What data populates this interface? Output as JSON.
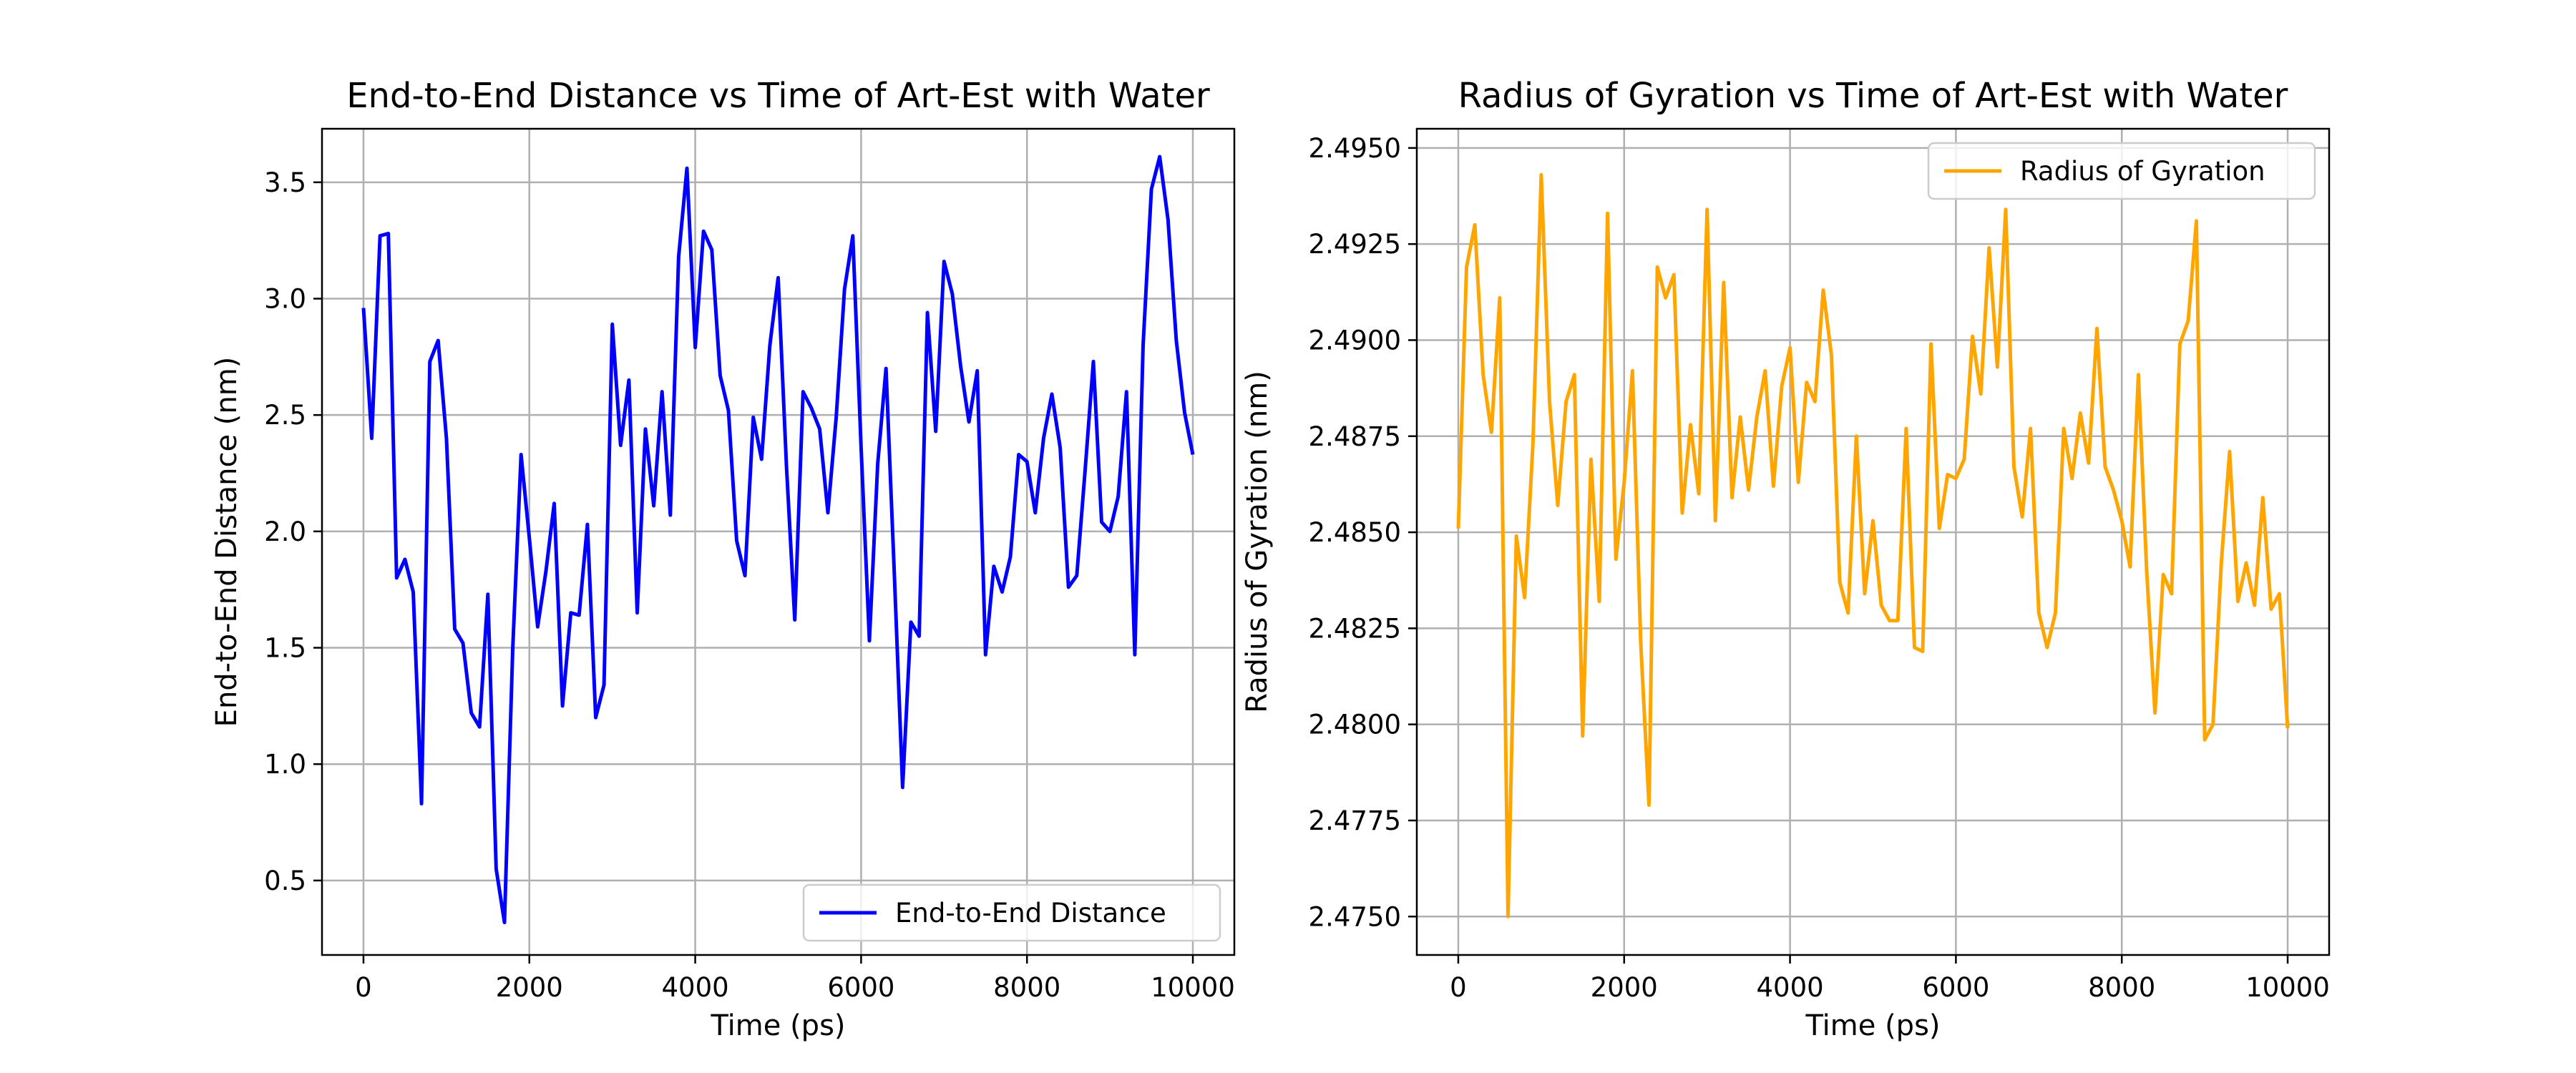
{
  "chart_data": [
    {
      "type": "line",
      "title": "End-to-End Distance vs Time of Art-Est with Water",
      "xlabel": "Time (ps)",
      "ylabel": "End-to-End Distance (nm)",
      "xlim": [
        -500,
        10500
      ],
      "ylim": [
        0.18,
        3.73
      ],
      "xticks": [
        0,
        2000,
        4000,
        6000,
        8000,
        10000
      ],
      "xtick_labels": [
        "0",
        "2000",
        "4000",
        "6000",
        "8000",
        "10000"
      ],
      "yticks": [
        0.5,
        1.0,
        1.5,
        2.0,
        2.5,
        3.0,
        3.5
      ],
      "ytick_labels": [
        "0.5",
        "1.0",
        "1.5",
        "2.0",
        "2.5",
        "3.0",
        "3.5"
      ],
      "grid": true,
      "legend_position": "lower-right",
      "series": [
        {
          "name": "End-to-End Distance",
          "color": "#0000ff",
          "x": [
            0,
            100,
            200,
            300,
            400,
            500,
            600,
            700,
            800,
            900,
            1000,
            1100,
            1200,
            1300,
            1400,
            1500,
            1600,
            1700,
            1800,
            1900,
            2000,
            2100,
            2200,
            2300,
            2400,
            2500,
            2600,
            2700,
            2800,
            2900,
            3000,
            3100,
            3200,
            3300,
            3400,
            3500,
            3600,
            3700,
            3800,
            3900,
            4000,
            4100,
            4200,
            4300,
            4400,
            4500,
            4600,
            4700,
            4800,
            4900,
            5000,
            5100,
            5200,
            5300,
            5400,
            5500,
            5600,
            5700,
            5800,
            5900,
            6000,
            6100,
            6200,
            6300,
            6400,
            6500,
            6600,
            6700,
            6800,
            6900,
            7000,
            7100,
            7200,
            7300,
            7400,
            7500,
            7600,
            7700,
            7800,
            7900,
            8000,
            8100,
            8200,
            8300,
            8400,
            8500,
            8600,
            8700,
            8800,
            8900,
            9000,
            9100,
            9200,
            9300,
            9400,
            9500,
            9600,
            9700,
            9800,
            9900,
            10000
          ],
          "y": [
            2.96,
            2.4,
            3.27,
            3.28,
            1.8,
            1.88,
            1.74,
            0.83,
            2.73,
            2.82,
            2.4,
            1.58,
            1.52,
            1.22,
            1.16,
            1.73,
            0.55,
            0.32,
            1.5,
            2.33,
            1.97,
            1.59,
            1.83,
            2.12,
            1.25,
            1.65,
            1.64,
            2.03,
            1.2,
            1.34,
            2.89,
            2.37,
            2.65,
            1.65,
            2.44,
            2.11,
            2.6,
            2.07,
            3.18,
            3.56,
            2.79,
            3.29,
            3.21,
            2.67,
            2.52,
            1.96,
            1.81,
            2.49,
            2.31,
            2.8,
            3.09,
            2.28,
            1.62,
            2.6,
            2.53,
            2.44,
            2.08,
            2.49,
            3.04,
            3.27,
            2.36,
            1.53,
            2.29,
            2.7,
            1.82,
            0.9,
            1.61,
            1.55,
            2.94,
            2.43,
            3.16,
            3.02,
            2.71,
            2.47,
            2.69,
            1.47,
            1.85,
            1.74,
            1.89,
            2.33,
            2.3,
            2.08,
            2.4,
            2.59,
            2.36,
            1.76,
            1.81,
            2.26,
            2.73,
            2.04,
            2.0,
            2.15,
            2.6,
            1.47,
            2.8,
            3.47,
            3.61,
            3.34,
            2.82,
            2.51,
            2.33
          ]
        }
      ]
    },
    {
      "type": "line",
      "title": "Radius of Gyration vs Time of Art-Est with Water",
      "xlabel": "Time (ps)",
      "ylabel": "Radius of Gyration (nm)",
      "xlim": [
        -500,
        10500
      ],
      "ylim": [
        2.474,
        2.4955
      ],
      "xticks": [
        0,
        2000,
        4000,
        6000,
        8000,
        10000
      ],
      "xtick_labels": [
        "0",
        "2000",
        "4000",
        "6000",
        "8000",
        "10000"
      ],
      "yticks": [
        2.475,
        2.4775,
        2.48,
        2.4825,
        2.485,
        2.4875,
        2.49,
        2.4925,
        2.495
      ],
      "ytick_labels": [
        "2.4750",
        "2.4775",
        "2.4800",
        "2.4825",
        "2.4850",
        "2.4875",
        "2.4900",
        "2.4925",
        "2.4950"
      ],
      "grid": true,
      "legend_position": "upper-right",
      "series": [
        {
          "name": "Radius of Gyration",
          "color": "#ffa500",
          "x": [
            0,
            100,
            200,
            300,
            400,
            500,
            600,
            700,
            800,
            900,
            1000,
            1100,
            1200,
            1300,
            1400,
            1500,
            1600,
            1700,
            1800,
            1900,
            2000,
            2100,
            2200,
            2300,
            2400,
            2500,
            2600,
            2700,
            2800,
            2900,
            3000,
            3100,
            3200,
            3300,
            3400,
            3500,
            3600,
            3700,
            3800,
            3900,
            4000,
            4100,
            4200,
            4300,
            4400,
            4500,
            4600,
            4700,
            4800,
            4900,
            5000,
            5100,
            5200,
            5300,
            5400,
            5500,
            5600,
            5700,
            5800,
            5900,
            6000,
            6100,
            6200,
            6300,
            6400,
            6500,
            6600,
            6700,
            6800,
            6900,
            7000,
            7100,
            7200,
            7300,
            7400,
            7500,
            7600,
            7700,
            7800,
            7900,
            8000,
            8100,
            8200,
            8300,
            8400,
            8500,
            8600,
            8700,
            8800,
            8900,
            9000,
            9100,
            9200,
            9300,
            9400,
            9500,
            9600,
            9700,
            9800,
            9900,
            10000
          ],
          "y": [
            2.4851,
            2.4919,
            2.493,
            2.4891,
            2.4876,
            2.4911,
            2.475,
            2.4849,
            2.4833,
            2.4873,
            2.4943,
            2.4884,
            2.4857,
            2.4884,
            2.4891,
            2.4797,
            2.4869,
            2.4832,
            2.4933,
            2.4843,
            2.4863,
            2.4892,
            2.4821,
            2.4779,
            2.4919,
            2.4911,
            2.4917,
            2.4855,
            2.4878,
            2.486,
            2.4934,
            2.4853,
            2.4915,
            2.4859,
            2.488,
            2.4861,
            2.488,
            2.4892,
            2.4862,
            2.4888,
            2.4898,
            2.4863,
            2.4889,
            2.4884,
            2.4913,
            2.4896,
            2.4837,
            2.4829,
            2.4875,
            2.4834,
            2.4853,
            2.4831,
            2.4827,
            2.4827,
            2.4877,
            2.482,
            2.4819,
            2.4899,
            2.4851,
            2.4865,
            2.4864,
            2.4869,
            2.4901,
            2.4886,
            2.4924,
            2.4893,
            2.4934,
            2.4867,
            2.4854,
            2.4877,
            2.4829,
            2.482,
            2.4829,
            2.4877,
            2.4864,
            2.4881,
            2.4868,
            2.4903,
            2.4867,
            2.4861,
            2.4853,
            2.4841,
            2.4891,
            2.484,
            2.4803,
            2.4839,
            2.4834,
            2.4899,
            2.4905,
            2.4931,
            2.4796,
            2.48,
            2.4842,
            2.4871,
            2.4832,
            2.4842,
            2.4831,
            2.4859,
            2.483,
            2.4834,
            2.4799
          ]
        }
      ]
    }
  ]
}
